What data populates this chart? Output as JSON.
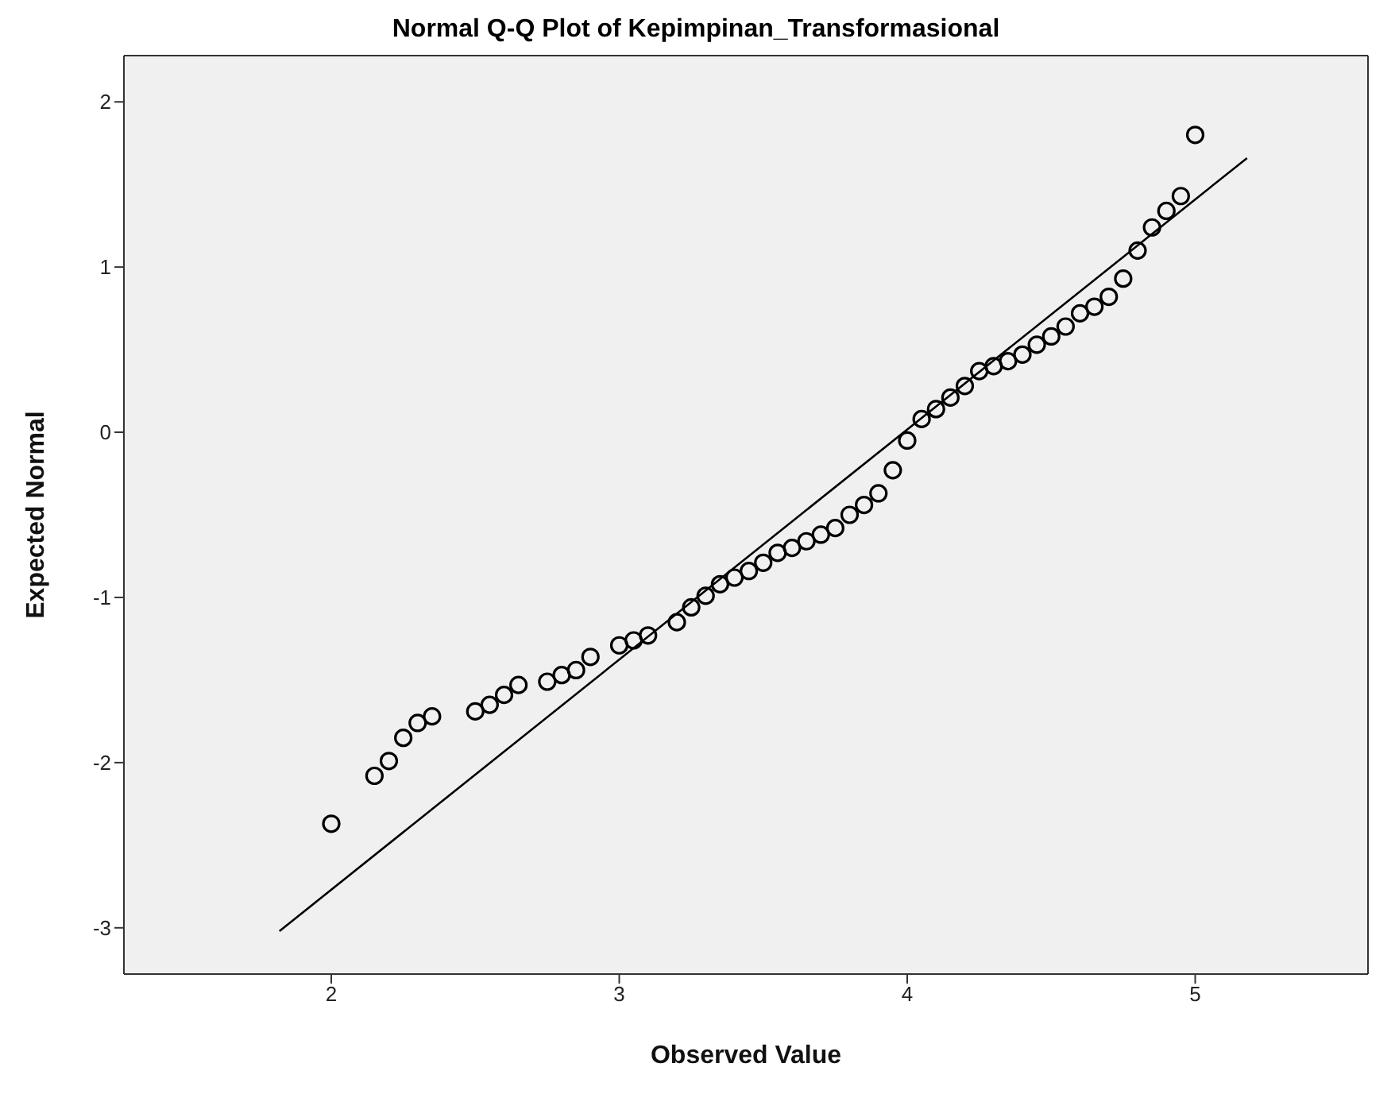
{
  "chart_data": {
    "type": "scatter",
    "title": "Normal Q-Q Plot of Kepimpinan_Transformasional",
    "xlabel": "Observed Value",
    "ylabel": "Expected Normal",
    "xlim": [
      1.28,
      5.6
    ],
    "ylim": [
      -3.28,
      2.28
    ],
    "xticks": [
      2,
      3,
      4,
      5
    ],
    "yticks": [
      -3,
      -2,
      -1,
      0,
      1,
      2
    ],
    "grid": false,
    "legend": false,
    "marker": "circle",
    "series": [
      {
        "color": "#000000",
        "x": [
          2.0,
          2.15,
          2.2,
          2.25,
          2.3,
          2.35,
          2.5,
          2.55,
          2.6,
          2.65,
          2.75,
          2.8,
          2.85,
          2.9,
          3.0,
          3.05,
          3.1,
          3.2,
          3.25,
          3.3,
          3.35,
          3.4,
          3.45,
          3.5,
          3.55,
          3.6,
          3.65,
          3.7,
          3.75,
          3.8,
          3.85,
          3.9,
          3.95,
          4.0,
          4.05,
          4.1,
          4.15,
          4.2,
          4.25,
          4.3,
          4.35,
          4.4,
          4.45,
          4.5,
          4.55,
          4.6,
          4.65,
          4.7,
          4.75,
          4.8,
          4.85,
          4.9,
          4.95,
          5.0
        ],
        "values": [
          -2.37,
          -2.08,
          -1.99,
          -1.85,
          -1.76,
          -1.72,
          -1.69,
          -1.65,
          -1.59,
          -1.53,
          -1.51,
          -1.47,
          -1.44,
          -1.36,
          -1.29,
          -1.26,
          -1.23,
          -1.15,
          -1.06,
          -0.99,
          -0.92,
          -0.88,
          -0.84,
          -0.79,
          -0.73,
          -0.7,
          -0.66,
          -0.62,
          -0.58,
          -0.5,
          -0.44,
          -0.37,
          -0.23,
          -0.05,
          0.08,
          0.14,
          0.21,
          0.28,
          0.37,
          0.4,
          0.43,
          0.47,
          0.53,
          0.58,
          0.64,
          0.72,
          0.76,
          0.82,
          0.93,
          1.1,
          1.24,
          1.34,
          1.43,
          1.8
        ]
      },
      {
        "type": "line",
        "color": "#000000",
        "x": [
          1.82,
          5.18
        ],
        "values": [
          -3.02,
          1.66
        ],
        "marker": "none"
      }
    ]
  }
}
